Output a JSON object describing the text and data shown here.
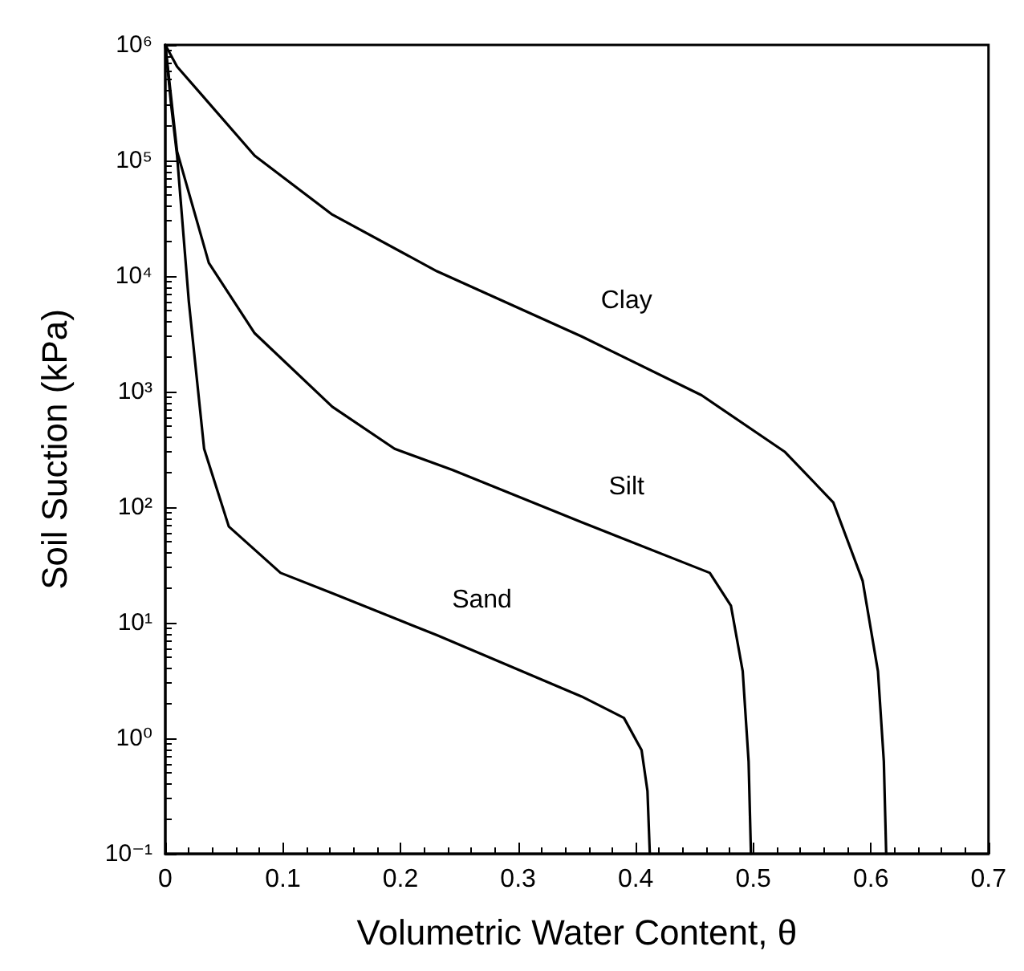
{
  "chart_data": {
    "type": "line",
    "xlabel": "Volumetric Water Content, θ",
    "ylabel": "Soil Suction (kPa)",
    "log": "y",
    "xlim": [
      0,
      0.7
    ],
    "xticks": [
      0,
      0.1,
      0.2,
      0.3,
      0.4,
      0.5,
      0.6,
      0.7
    ],
    "ylim": [
      0.1,
      1000000
    ],
    "yticks": [
      {
        "value": 0.1,
        "label": "10⁻¹"
      },
      {
        "value": 1,
        "label": "10⁰"
      },
      {
        "value": 10,
        "label": "10¹"
      },
      {
        "value": 100,
        "label": "10²"
      },
      {
        "value": 1000,
        "label": "10³"
      },
      {
        "value": 10000,
        "label": "10⁴"
      },
      {
        "value": 100000,
        "label": "10⁵"
      },
      {
        "value": 1000000,
        "label": "10⁶"
      }
    ],
    "grid": false,
    "legend": false,
    "marker": "none",
    "line_style": "solid",
    "series": [
      {
        "name": "Clay",
        "color": "#000000",
        "x": [
          0,
          0.01,
          0.076,
          0.142,
          0.231,
          0.354,
          0.456,
          0.527,
          0.568,
          0.593,
          0.606,
          0.611,
          0.613
        ],
        "values": [
          1000000,
          650000,
          110000,
          34000,
          11000,
          3000,
          930,
          300,
          110,
          23,
          3.8,
          0.63,
          0.1
        ]
      },
      {
        "name": "Silt",
        "color": "#000000",
        "x": [
          0,
          0.01,
          0.037,
          0.076,
          0.142,
          0.195,
          0.244,
          0.354,
          0.463,
          0.481,
          0.491,
          0.496,
          0.498
        ],
        "values": [
          1000000,
          120000,
          13000,
          3200,
          740,
          320,
          210,
          74,
          27,
          14,
          3.8,
          0.63,
          0.1
        ]
      },
      {
        "name": "Sand",
        "color": "#000000",
        "x": [
          0,
          0.005,
          0.01,
          0.02,
          0.033,
          0.054,
          0.098,
          0.142,
          0.231,
          0.354,
          0.39,
          0.405,
          0.41,
          0.412
        ],
        "values": [
          1000000,
          300000,
          110000,
          6000,
          320,
          68,
          27,
          18,
          7.8,
          2.3,
          1.5,
          0.79,
          0.35,
          0.1
        ]
      }
    ]
  }
}
